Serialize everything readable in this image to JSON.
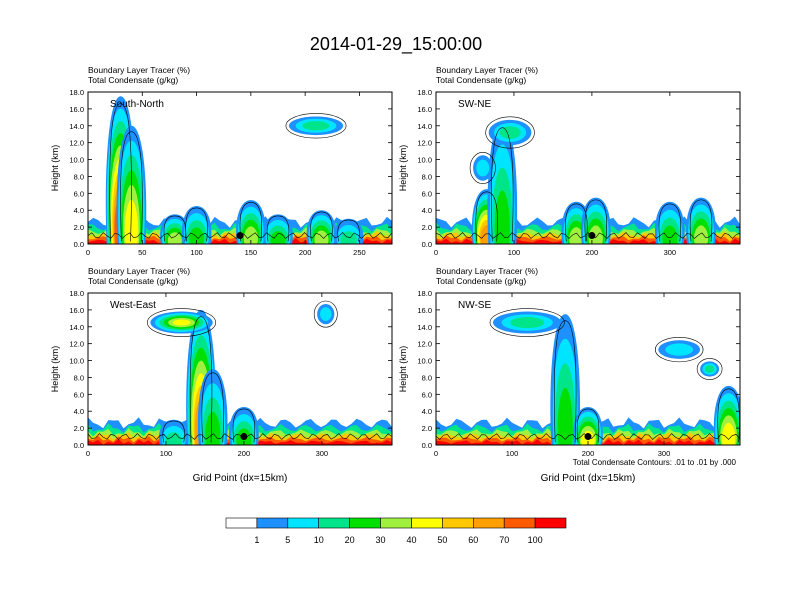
{
  "title": "2014-01-29_15:00:00",
  "footnote": "Total Condensate Contours: .01 to .01 by .000",
  "colorbar": {
    "labels": [
      "1",
      "5",
      "10",
      "20",
      "30",
      "40",
      "50",
      "60",
      "70",
      "100"
    ],
    "colors": [
      "#ffffff",
      "#1e90ff",
      "#00e5ff",
      "#00e58a",
      "#00e000",
      "#a0f040",
      "#ffff00",
      "#ffc800",
      "#ffa000",
      "#ff5a00",
      "#ff0000"
    ]
  },
  "chart_data": [
    {
      "type": "heatmap",
      "name": "South-North",
      "header": [
        "Boundary Layer Tracer   (%)",
        "Total Condensate   (g/kg)"
      ],
      "xlabel": "",
      "ylabel": "Height (km)",
      "xlim": [
        0,
        280
      ],
      "ylim": [
        0,
        18
      ],
      "xticks": [
        "0",
        "50",
        "100",
        "150",
        "200",
        "250"
      ],
      "yticks": [
        "0.0",
        "2.0",
        "4.0",
        "6.0",
        "8.0",
        "10.0",
        "12.0",
        "14.0",
        "16.0",
        "18.0"
      ],
      "marker": {
        "x": 140,
        "y": 1.0
      },
      "columns": [
        {
          "x": 30,
          "ymax": 17.5,
          "level": 9
        },
        {
          "x": 40,
          "ymax": 14,
          "level": 6
        },
        {
          "x": 80,
          "ymax": 3.5,
          "level": 5
        },
        {
          "x": 100,
          "ymax": 4.5,
          "level": 4
        },
        {
          "x": 150,
          "ymax": 5.2,
          "level": 5
        },
        {
          "x": 175,
          "ymax": 3.5,
          "level": 4
        },
        {
          "x": 215,
          "ymax": 4.0,
          "level": 5
        },
        {
          "x": 240,
          "ymax": 3.0,
          "level": 3
        }
      ],
      "blobs": [
        {
          "x": 210,
          "y": 14.0,
          "w": 50,
          "h": 2.2,
          "level": 3
        }
      ]
    },
    {
      "type": "heatmap",
      "name": "SW-NE",
      "header": [
        "Boundary Layer Tracer   (%)",
        "Total Condensate   (g/kg)"
      ],
      "xlabel": "",
      "ylabel": "Height (km)",
      "xlim": [
        0,
        390
      ],
      "ylim": [
        0,
        18
      ],
      "xticks": [
        "0",
        "100",
        "200",
        "300"
      ],
      "yticks": [
        "0.0",
        "2.0",
        "4.0",
        "6.0",
        "8.0",
        "10.0",
        "12.0",
        "14.0",
        "16.0",
        "18.0"
      ],
      "marker": {
        "x": 200,
        "y": 1.0
      },
      "columns": [
        {
          "x": 65,
          "ymax": 6.5,
          "level": 8
        },
        {
          "x": 85,
          "ymax": 14.5,
          "level": 4
        },
        {
          "x": 180,
          "ymax": 5.0,
          "level": 5
        },
        {
          "x": 205,
          "ymax": 5.5,
          "level": 5
        },
        {
          "x": 300,
          "ymax": 5.0,
          "level": 4
        },
        {
          "x": 340,
          "ymax": 5.5,
          "level": 5
        }
      ],
      "blobs": [
        {
          "x": 95,
          "y": 13.2,
          "w": 55,
          "h": 3.0,
          "level": 3
        },
        {
          "x": 60,
          "y": 9.0,
          "w": 25,
          "h": 3.0,
          "level": 2
        }
      ]
    },
    {
      "type": "heatmap",
      "name": "West-East",
      "header": [
        "Boundary Layer Tracer   (%)",
        "Total Condensate   (g/kg)"
      ],
      "xlabel": "Grid Point (dx=15km)",
      "ylabel": "Height (km)",
      "xlim": [
        0,
        390
      ],
      "ylim": [
        0,
        18
      ],
      "xticks": [
        "0",
        "100",
        "200",
        "300"
      ],
      "yticks": [
        "0.0",
        "2.0",
        "4.0",
        "6.0",
        "8.0",
        "10.0",
        "12.0",
        "14.0",
        "16.0",
        "18.0"
      ],
      "marker": {
        "x": 200,
        "y": 1.0
      },
      "columns": [
        {
          "x": 145,
          "ymax": 16.0,
          "level": 8
        },
        {
          "x": 160,
          "ymax": 9.0,
          "level": 4
        },
        {
          "x": 200,
          "ymax": 4.5,
          "level": 4
        },
        {
          "x": 110,
          "ymax": 3.0,
          "level": 3
        }
      ],
      "blobs": [
        {
          "x": 120,
          "y": 14.5,
          "w": 80,
          "h": 2.6,
          "level": 6
        },
        {
          "x": 305,
          "y": 15.5,
          "w": 22,
          "h": 2.4,
          "level": 2
        }
      ]
    },
    {
      "type": "heatmap",
      "name": "NW-SE",
      "header": [
        "Boundary Layer Tracer   (%)",
        "Total Condensate   (g/kg)"
      ],
      "xlabel": "Grid Point (dx=15km)",
      "ylabel": "Height (km)",
      "xlim": [
        0,
        400
      ],
      "ylim": [
        0,
        18
      ],
      "xticks": [
        "0",
        "100",
        "200",
        "300"
      ],
      "yticks": [
        "0.0",
        "2.0",
        "4.0",
        "6.0",
        "8.0",
        "10.0",
        "12.0",
        "14.0",
        "16.0",
        "18.0"
      ],
      "marker": {
        "x": 200,
        "y": 1.0
      },
      "columns": [
        {
          "x": 170,
          "ymax": 15.5,
          "level": 4
        },
        {
          "x": 200,
          "ymax": 4.5,
          "level": 6
        },
        {
          "x": 385,
          "ymax": 7.0,
          "level": 6
        }
      ],
      "blobs": [
        {
          "x": 120,
          "y": 14.5,
          "w": 90,
          "h": 2.6,
          "level": 3
        },
        {
          "x": 320,
          "y": 11.3,
          "w": 55,
          "h": 2.2,
          "level": 2
        },
        {
          "x": 360,
          "y": 9.0,
          "w": 25,
          "h": 1.8,
          "level": 3
        }
      ]
    }
  ]
}
